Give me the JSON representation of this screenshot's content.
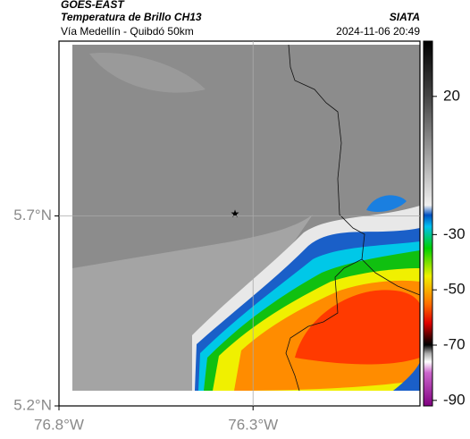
{
  "header": {
    "source": "GOES-EAST",
    "product": "Temperatura de Brillo CH13",
    "organization": "SIATA",
    "route": "Vía Medellín - Quibdó 50km",
    "timestamp": "2024-11-06 20:49"
  },
  "map": {
    "lonlim": [
      -76.8,
      -75.87
    ],
    "latlim": [
      5.2,
      6.16
    ],
    "lonticks": [
      {
        "value": -76.8,
        "label": "76.8°W"
      },
      {
        "value": -76.3,
        "label": "76.3°W"
      }
    ],
    "latticks": [
      {
        "value": 5.2,
        "label": "5.2°N"
      },
      {
        "value": 5.7,
        "label": "5.7°N"
      }
    ]
  },
  "colorbar": {
    "lim": [
      -92,
      40
    ],
    "ticks": [
      20,
      -30,
      -50,
      -70,
      -90
    ]
  }
}
